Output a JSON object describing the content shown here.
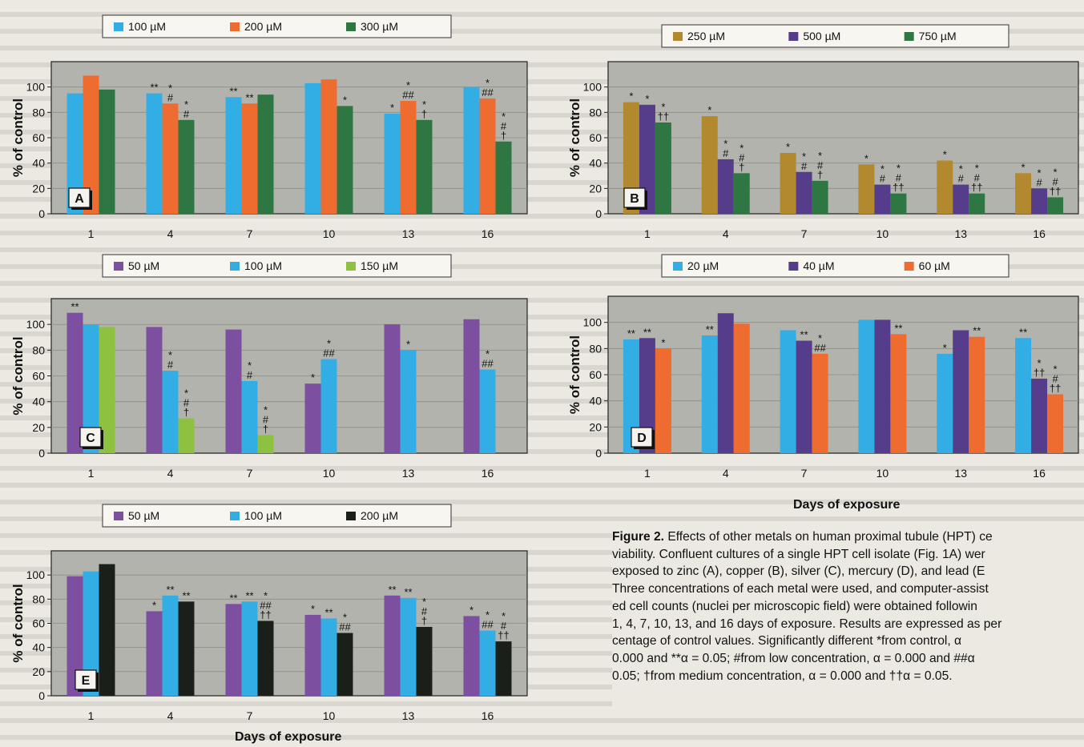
{
  "figure": {
    "caption_label": "Figure 2.",
    "caption_lines": [
      " Effects of other metals on human proximal tubule (HPT) ce",
      "viability. Confluent cultures of a single HPT cell isolate (Fig. 1A) wer",
      "exposed to zinc (A), copper (B), silver (C), mercury (D), and lead (E",
      "Three concentrations of each metal were used, and computer-assist",
      "ed cell counts (nuclei per microscopic field) were obtained followin",
      "1, 4, 7, 10, 13, and 16 days of exposure. Results are expressed as per",
      "centage of control values. Significantly different *from control, α",
      "0.000 and **α = 0.05; #from low concentration, α = 0.000 and ##α",
      "0.05; †from medium concentration, α = 0.000 and ††α = 0.05."
    ],
    "days_label": "Days of exposure"
  },
  "colors": {
    "plot_bg": "#b3b3ae",
    "purple": "#7d4fa1",
    "blue": "#33aee4",
    "orange": "#ef6c30",
    "green": "#2e7742",
    "gold": "#b3892f",
    "violet": "#563d8b",
    "lime": "#8ec13f",
    "black": "#1a1f1a"
  },
  "chart_data": [
    {
      "type": "bar",
      "panel_label": "A",
      "categories": [
        "1",
        "4",
        "7",
        "10",
        "13",
        "16"
      ],
      "ylabel": "% of control",
      "ylim": [
        0,
        120
      ],
      "yticks": [
        0,
        20,
        40,
        60,
        80,
        100
      ],
      "xlabel": "",
      "grid": true,
      "legend": "top",
      "series": [
        {
          "name": "100 µM",
          "color": "#33aee4",
          "values": [
            95,
            95,
            92,
            103,
            79,
            100
          ],
          "labels": [
            "",
            "**",
            "**",
            "",
            "*",
            ""
          ]
        },
        {
          "name": "200 µM",
          "color": "#ef6c30",
          "values": [
            109,
            87,
            87,
            106,
            89,
            91
          ],
          "labels": [
            "",
            "*|#",
            "**",
            "",
            "*|##",
            "*|##"
          ]
        },
        {
          "name": "300 µM",
          "color": "#2e7742",
          "values": [
            98,
            74,
            94,
            85,
            74,
            57
          ],
          "labels": [
            "",
            "*|#",
            "",
            "*",
            "*|†",
            "*|#|†"
          ]
        }
      ]
    },
    {
      "type": "bar",
      "panel_label": "B",
      "categories": [
        "1",
        "4",
        "7",
        "10",
        "13",
        "16"
      ],
      "ylabel": "% of control",
      "ylim": [
        0,
        120
      ],
      "yticks": [
        0,
        20,
        40,
        60,
        80,
        100
      ],
      "xlabel": "",
      "grid": true,
      "legend": "top",
      "series": [
        {
          "name": "250 µM",
          "color": "#b3892f",
          "values": [
            88,
            77,
            48,
            39,
            42,
            32
          ],
          "labels": [
            "*",
            "*",
            "*",
            "*",
            "*",
            "*"
          ]
        },
        {
          "name": "500 µM",
          "color": "#563d8b",
          "values": [
            86,
            43,
            33,
            23,
            23,
            20
          ],
          "labels": [
            "*",
            "*|#",
            "*|#",
            "*|#",
            "*|#",
            "*|#"
          ]
        },
        {
          "name": "750 µM",
          "color": "#2e7742",
          "values": [
            72,
            32,
            26,
            16,
            16,
            13
          ],
          "labels": [
            "*|††",
            "*|#|†",
            "*|#|†",
            "*|#|††",
            "*|#|††",
            "*|#|††"
          ]
        }
      ]
    },
    {
      "type": "bar",
      "panel_label": "C",
      "categories": [
        "1",
        "4",
        "7",
        "10",
        "13",
        "16"
      ],
      "ylabel": "% of control",
      "ylim": [
        0,
        120
      ],
      "yticks": [
        0,
        20,
        40,
        60,
        80,
        100
      ],
      "xlabel": "",
      "grid": true,
      "legend": "top",
      "series": [
        {
          "name": "50 µM",
          "color": "#7d4fa1",
          "values": [
            109,
            98,
            96,
            54,
            100,
            104
          ],
          "labels": [
            "**",
            "",
            "",
            "*",
            "",
            ""
          ]
        },
        {
          "name": "100 µM",
          "color": "#33aee4",
          "values": [
            100,
            64,
            56,
            73,
            80,
            65
          ],
          "labels": [
            "",
            "*|#",
            "*|#",
            "*|##",
            "*",
            "*|##"
          ]
        },
        {
          "name": "150 µM",
          "color": "#8ec13f",
          "values": [
            98,
            27,
            14,
            null,
            null,
            null
          ],
          "labels": [
            "",
            "*|#|†",
            "*|#|†",
            "",
            "",
            ""
          ]
        }
      ]
    },
    {
      "type": "bar",
      "panel_label": "D",
      "categories": [
        "1",
        "4",
        "7",
        "10",
        "13",
        "16"
      ],
      "ylabel": "% of control",
      "ylim": [
        0,
        120
      ],
      "yticks": [
        0,
        20,
        40,
        60,
        80,
        100
      ],
      "xlabel": "",
      "grid": true,
      "legend": "top",
      "series": [
        {
          "name": "20 µM",
          "color": "#33aee4",
          "values": [
            87,
            90,
            94,
            102,
            76,
            88
          ],
          "labels": [
            "**",
            "**",
            "",
            "",
            "*",
            "**"
          ]
        },
        {
          "name": "40 µM",
          "color": "#563d8b",
          "values": [
            88,
            107,
            86,
            102,
            94,
            57
          ],
          "labels": [
            "**",
            "",
            "**",
            "",
            "",
            "*|††"
          ]
        },
        {
          "name": "60 µM",
          "color": "#ef6c30",
          "values": [
            80,
            99,
            76,
            91,
            89,
            45
          ],
          "labels": [
            "*",
            "",
            "*|##",
            "**",
            "**",
            "*|#|††"
          ]
        }
      ]
    },
    {
      "type": "bar",
      "panel_label": "E",
      "categories": [
        "1",
        "4",
        "7",
        "10",
        "13",
        "16"
      ],
      "ylabel": "% of control",
      "ylim": [
        0,
        120
      ],
      "yticks": [
        0,
        20,
        40,
        60,
        80,
        100
      ],
      "xlabel": "Days of exposure",
      "grid": true,
      "legend": "top",
      "series": [
        {
          "name": "50 µM",
          "color": "#7d4fa1",
          "values": [
            99,
            70,
            76,
            67,
            83,
            66
          ],
          "labels": [
            "",
            "*",
            "**",
            "*",
            "**",
            "*"
          ]
        },
        {
          "name": "100 µM",
          "color": "#33aee4",
          "values": [
            103,
            83,
            78,
            64,
            81,
            54
          ],
          "labels": [
            "",
            "**",
            "**",
            "**",
            "**",
            "*|##"
          ]
        },
        {
          "name": "200 µM",
          "color": "#1a1f1a",
          "values": [
            109,
            78,
            62,
            52,
            57,
            45
          ],
          "labels": [
            "",
            "**",
            "*|##|††",
            "*|##",
            "*|#|†",
            "*|#|††"
          ]
        }
      ]
    }
  ]
}
